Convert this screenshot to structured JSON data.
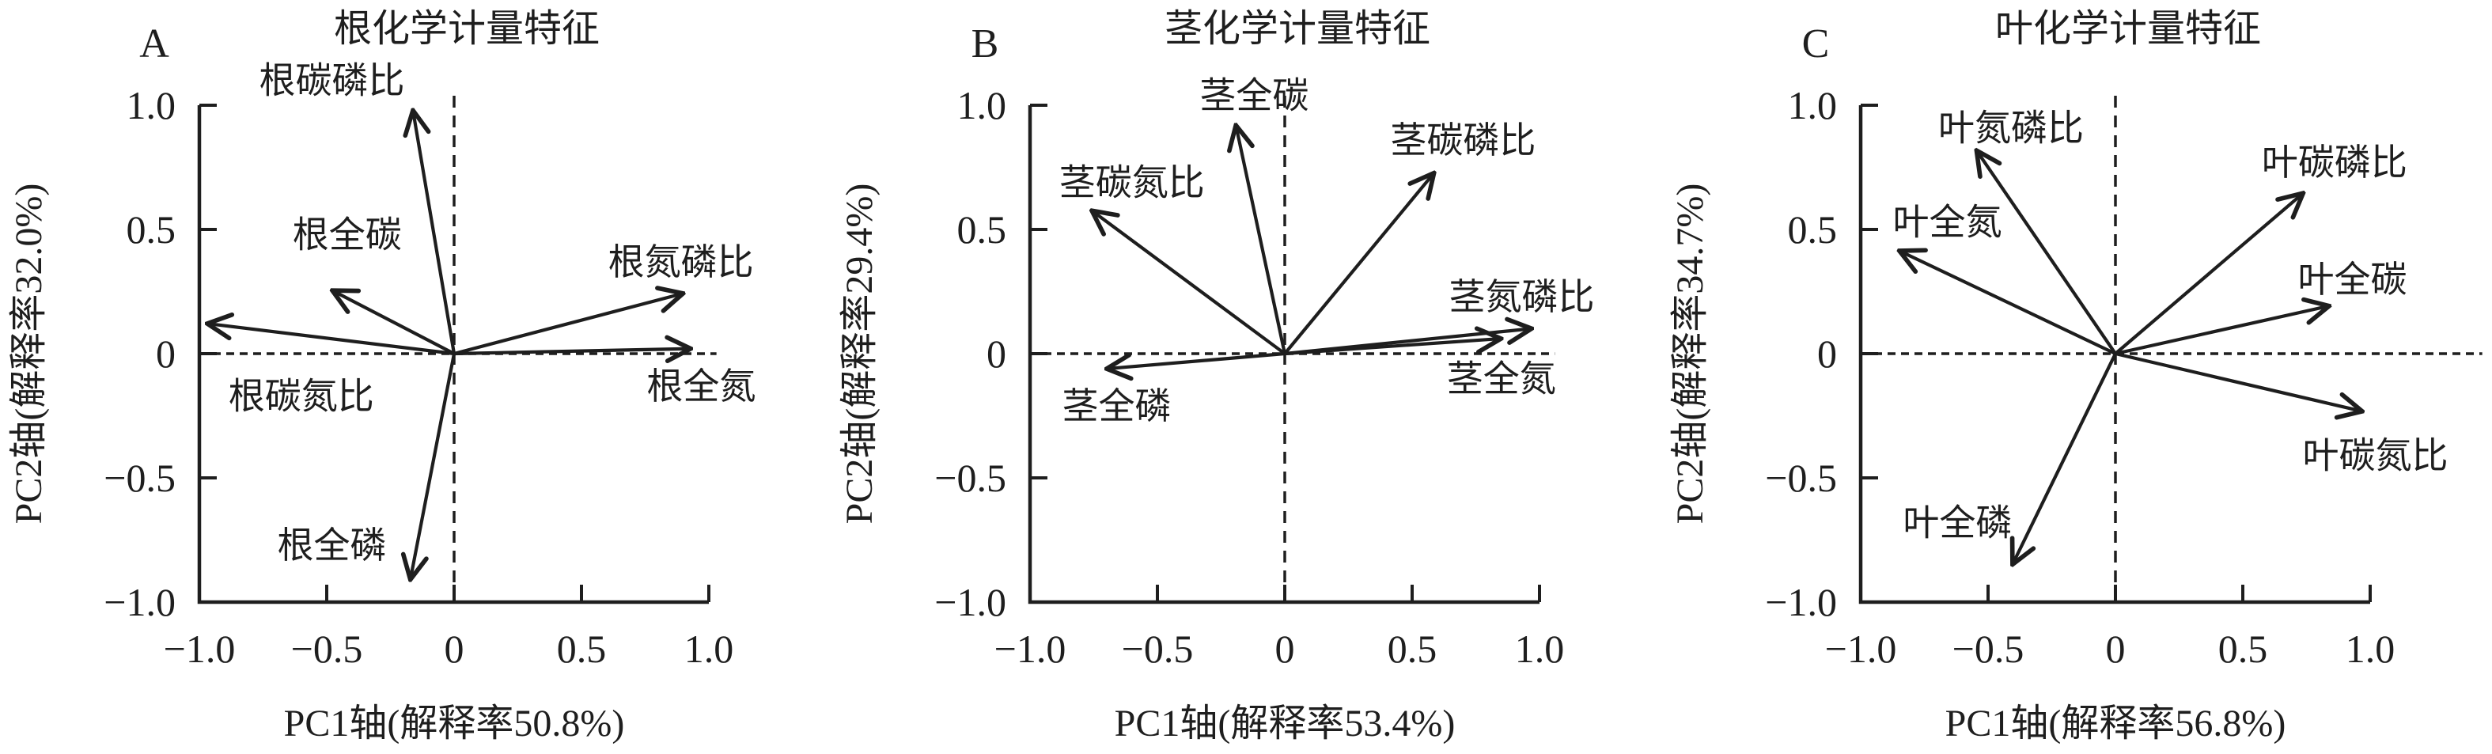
{
  "figure": {
    "background_color": "#ffffff",
    "ink_color": "#1e1e1e",
    "description_note": "",
    "panel_count": 3
  },
  "chart_data": [
    {
      "type": "scatter",
      "subtype": "pca-biplot-vectors",
      "panel_letter": "A",
      "title": "根化学计量特征",
      "xlabel": "PC1轴(解释率50.8%)",
      "ylabel": "PC2轴(解释率32.0%)",
      "xlim": [
        -1.0,
        1.0
      ],
      "ylim": [
        -1.0,
        1.0
      ],
      "grid": "dashed zero reference lines",
      "legend_position": "none",
      "x_tick_values": [
        -1.0,
        -0.5,
        0,
        0.5,
        1.0
      ],
      "y_tick_values": [
        1.0,
        0.5,
        0,
        -0.5,
        -1.0
      ],
      "x_tick_labels": [
        "−1.0",
        "−0.5",
        "0",
        "0.5",
        "1.0"
      ],
      "y_tick_labels": [
        "1.0",
        "0.5",
        "0",
        "−0.5",
        "−1.0"
      ],
      "vectors": [
        {
          "name": "根碳磷比",
          "pc1": -0.16,
          "pc2": 0.97,
          "label_x": -0.48,
          "label_y": 1.1
        },
        {
          "name": "根全碳",
          "pc1": -0.47,
          "pc2": 0.25,
          "label_x": -0.42,
          "label_y": 0.48
        },
        {
          "name": "根碳氮比",
          "pc1": -0.96,
          "pc2": 0.12,
          "label_x": -0.6,
          "label_y": -0.17
        },
        {
          "name": "根氮磷比",
          "pc1": 0.89,
          "pc2": 0.24,
          "label_x": 0.89,
          "label_y": 0.37
        },
        {
          "name": "根全氮",
          "pc1": 0.92,
          "pc2": 0.02,
          "label_x": 0.97,
          "label_y": -0.13
        },
        {
          "name": "根全磷",
          "pc1": -0.17,
          "pc2": -0.9,
          "label_x": -0.48,
          "label_y": -0.77
        }
      ]
    },
    {
      "type": "scatter",
      "subtype": "pca-biplot-vectors",
      "panel_letter": "B",
      "title": "茎化学计量特征",
      "xlabel": "PC1轴(解释率53.4%)",
      "ylabel": "PC2轴(解释率29.4%)",
      "xlim": [
        -1.0,
        1.0
      ],
      "ylim": [
        -1.0,
        1.0
      ],
      "grid": "dashed zero reference lines",
      "legend_position": "none",
      "x_tick_values": [
        -1.0,
        -0.5,
        0,
        0.5,
        1.0
      ],
      "y_tick_values": [
        1.0,
        0.5,
        0,
        -0.5,
        -1.0
      ],
      "x_tick_labels": [
        "−1.0",
        "−0.5",
        "0",
        "0.5",
        "1.0"
      ],
      "y_tick_labels": [
        "1.0",
        "0.5",
        "0",
        "−0.5",
        "−1.0"
      ],
      "vectors": [
        {
          "name": "茎全碳",
          "pc1": -0.19,
          "pc2": 0.91,
          "label_x": -0.12,
          "label_y": 1.04
        },
        {
          "name": "茎碳磷比",
          "pc1": 0.58,
          "pc2": 0.72,
          "label_x": 0.7,
          "label_y": 0.86
        },
        {
          "name": "茎碳氮比",
          "pc1": -0.75,
          "pc2": 0.57,
          "label_x": -0.6,
          "label_y": 0.69
        },
        {
          "name": "茎氮磷比",
          "pc1": 0.96,
          "pc2": 0.1,
          "label_x": 0.93,
          "label_y": 0.23
        },
        {
          "name": "茎全氮",
          "pc1": 0.84,
          "pc2": 0.06,
          "label_x": 0.85,
          "label_y": -0.1
        },
        {
          "name": "茎全磷",
          "pc1": -0.69,
          "pc2": -0.06,
          "label_x": -0.66,
          "label_y": -0.21
        }
      ]
    },
    {
      "type": "scatter",
      "subtype": "pca-biplot-vectors",
      "panel_letter": "C",
      "title": "叶化学计量特征",
      "xlabel": "PC1轴(解释率56.8%)",
      "ylabel": "PC2轴(解释率34.7%)",
      "xlim": [
        -1.0,
        1.0
      ],
      "ylim": [
        -1.0,
        1.0
      ],
      "grid": "dashed zero reference lines",
      "legend_position": "none",
      "x_tick_values": [
        -1.0,
        -0.5,
        0,
        0.5,
        1.0
      ],
      "y_tick_values": [
        1.0,
        0.5,
        0,
        -0.5,
        -1.0
      ],
      "x_tick_labels": [
        "−1.0",
        "−0.5",
        "0",
        "0.5",
        "1.0"
      ],
      "y_tick_labels": [
        "1.0",
        "0.5",
        "0",
        "−0.5",
        "−1.0"
      ],
      "vectors": [
        {
          "name": "叶氮磷比",
          "pc1": -0.54,
          "pc2": 0.81,
          "label_x": -0.41,
          "label_y": 0.91
        },
        {
          "name": "叶碳磷比",
          "pc1": 0.73,
          "pc2": 0.64,
          "label_x": 0.86,
          "label_y": 0.77
        },
        {
          "name": "叶全氮",
          "pc1": -0.84,
          "pc2": 0.41,
          "label_x": -0.66,
          "label_y": 0.53
        },
        {
          "name": "叶全碳",
          "pc1": 0.83,
          "pc2": 0.19,
          "label_x": 0.93,
          "label_y": 0.3
        },
        {
          "name": "叶碳氮比",
          "pc1": 0.96,
          "pc2": -0.23,
          "label_x": 1.02,
          "label_y": -0.41
        },
        {
          "name": "叶全磷",
          "pc1": -0.4,
          "pc2": -0.84,
          "label_x": -0.62,
          "label_y": -0.68
        }
      ]
    }
  ]
}
